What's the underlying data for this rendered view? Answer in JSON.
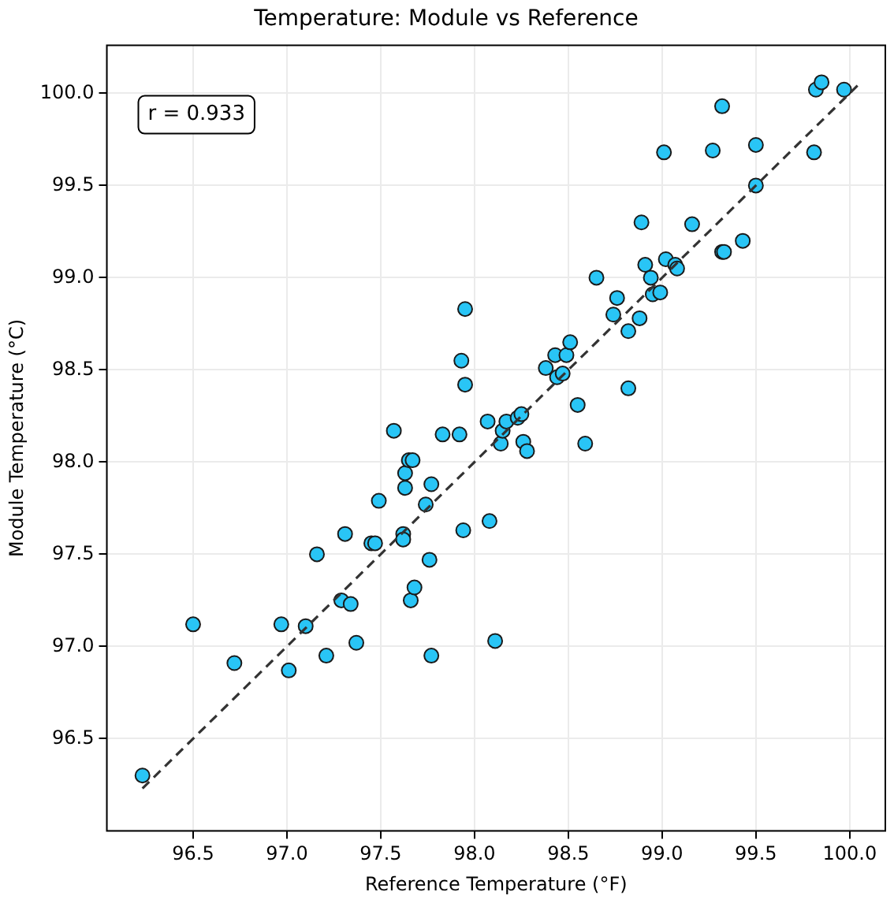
{
  "chart_data": {
    "type": "scatter",
    "title": "Temperature: Module vs Reference",
    "xlabel": "Reference Temperature (°F)",
    "ylabel": "Module Temperature (°C)",
    "annotations": [
      "r = 0.933"
    ],
    "series": [
      {
        "type": "scatter",
        "color": "#29c5f6",
        "x": [
          96.23,
          96.5,
          96.72,
          96.97,
          97.01,
          97.1,
          97.16,
          97.21,
          97.29,
          97.31,
          97.34,
          97.37,
          97.45,
          97.47,
          97.49,
          97.57,
          97.62,
          97.62,
          97.63,
          97.63,
          97.65,
          97.67,
          97.66,
          97.68,
          97.74,
          97.76,
          97.77,
          97.77,
          97.83,
          97.92,
          97.93,
          97.94,
          97.95,
          97.95,
          98.07,
          98.08,
          98.11,
          98.14,
          98.15,
          98.17,
          98.23,
          98.25,
          98.26,
          98.28,
          98.38,
          98.43,
          98.44,
          98.47,
          98.49,
          98.51,
          98.55,
          98.59,
          98.65,
          98.74,
          98.76,
          98.82,
          98.82,
          98.88,
          98.89,
          98.91,
          98.94,
          98.95,
          98.99,
          99.01,
          99.02,
          99.07,
          99.08,
          99.16,
          99.27,
          99.32,
          99.32,
          99.33,
          99.43,
          99.5,
          99.5,
          99.81,
          99.82,
          99.85,
          99.97
        ],
        "values": [
          96.3,
          97.12,
          96.91,
          97.12,
          96.87,
          97.11,
          97.5,
          96.95,
          97.25,
          97.61,
          97.23,
          97.02,
          97.56,
          97.56,
          97.79,
          98.17,
          97.61,
          97.58,
          97.86,
          97.94,
          98.01,
          98.01,
          97.25,
          97.32,
          97.77,
          97.47,
          97.88,
          96.95,
          98.15,
          98.15,
          98.55,
          97.63,
          98.42,
          98.83,
          98.22,
          97.68,
          97.03,
          98.1,
          98.17,
          98.22,
          98.24,
          98.26,
          98.11,
          98.06,
          98.51,
          98.58,
          98.46,
          98.48,
          98.58,
          98.65,
          98.31,
          98.1,
          99.0,
          98.8,
          98.89,
          98.71,
          98.4,
          98.78,
          99.3,
          99.07,
          99.0,
          98.91,
          98.92,
          99.68,
          99.1,
          99.07,
          99.05,
          99.29,
          99.69,
          99.93,
          99.14,
          99.14,
          99.2,
          99.72,
          99.5,
          99.68,
          100.02,
          100.06,
          100.02
        ]
      },
      {
        "type": "line",
        "color": "#333333",
        "line_style": "dashed",
        "marker": "none",
        "x": [
          96.23,
          100.06
        ],
        "values": [
          96.23,
          100.06
        ]
      }
    ],
    "marker": "circle",
    "grid": true,
    "legend": false,
    "xlim": [
      96.04,
      100.19
    ],
    "ylim": [
      96.0,
      100.26
    ],
    "xticks": [
      96.5,
      {
        "value": 97,
        "label": "97.0"
      },
      97.5,
      {
        "value": 98,
        "label": "98.0"
      },
      98.5,
      {
        "value": 99,
        "label": "99.0"
      },
      99.5,
      {
        "value": 100,
        "label": "100.0"
      }
    ],
    "yticks": [
      96.5,
      {
        "value": 97,
        "label": "97.0"
      },
      97.5,
      {
        "value": 98,
        "label": "98.0"
      },
      98.5,
      {
        "value": 99,
        "label": "99.0"
      },
      99.5,
      {
        "value": 100,
        "label": "100.0"
      }
    ]
  }
}
